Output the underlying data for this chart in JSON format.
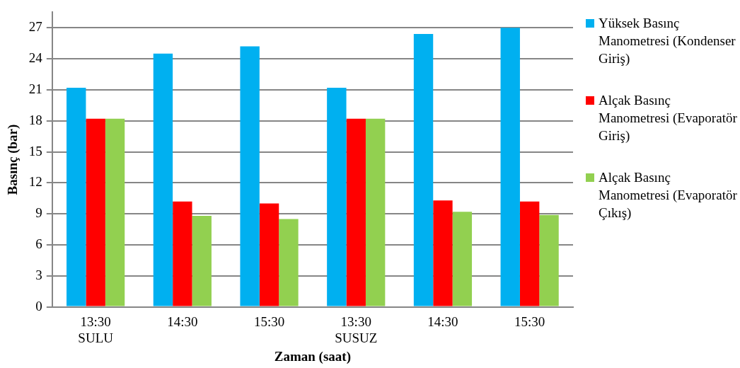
{
  "chart_data": {
    "type": "bar",
    "xlabel": "Zaman (saat)",
    "ylabel": "Basınç (bar)",
    "categories": [
      "13:30\nSULU",
      "14:30",
      "15:30",
      "13:30\nSUSUZ",
      "14:30",
      "15:30"
    ],
    "series": [
      {
        "name": "Yüksek Basınç Manometresi (Kondenser Giriş)",
        "color": "#00b0f0",
        "values": [
          21.2,
          24.5,
          25.2,
          21.2,
          26.4,
          27
        ]
      },
      {
        "name": "Alçak Basınç Manometresi (Evaporatör Giriş)",
        "color": "#ff0000",
        "values": [
          18.2,
          10.2,
          10,
          18.2,
          10.3,
          10.2
        ]
      },
      {
        "name": "Alçak Basınç Manometresi (Evaporatör Çıkış)",
        "color": "#92d050",
        "values": [
          18.2,
          8.8,
          8.5,
          18.2,
          9.2,
          8.9
        ]
      }
    ],
    "ylim": [
      0,
      28.5
    ],
    "yticks": [
      0,
      3,
      6,
      9,
      12,
      15,
      18,
      21,
      24,
      27
    ],
    "grid": "y",
    "legend": "right"
  }
}
